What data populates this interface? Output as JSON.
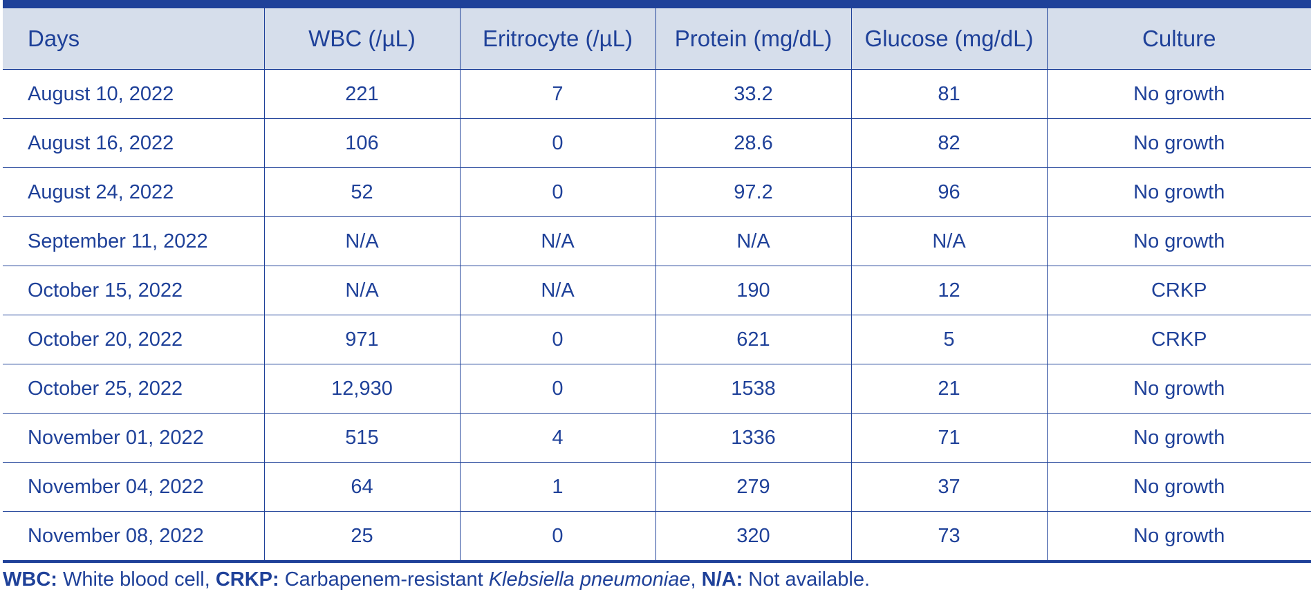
{
  "table": {
    "headers": [
      "Days",
      "WBC (/µL)",
      "Eritrocyte (/µL)",
      "Protein (mg/dL)",
      "Glucose (mg/dL)",
      "Culture"
    ],
    "rows": [
      [
        "August 10, 2022",
        "221",
        "7",
        "33.2",
        "81",
        "No growth"
      ],
      [
        "August 16, 2022",
        "106",
        "0",
        "28.6",
        "82",
        "No growth"
      ],
      [
        "August 24, 2022",
        "52",
        "0",
        "97.2",
        "96",
        "No growth"
      ],
      [
        "September 11, 2022",
        "N/A",
        "N/A",
        "N/A",
        "N/A",
        "No growth"
      ],
      [
        "October 15, 2022",
        "N/A",
        "N/A",
        "190",
        "12",
        "CRKP"
      ],
      [
        "October 20, 2022",
        "971",
        "0",
        "621",
        "5",
        "CRKP"
      ],
      [
        "October 25, 2022",
        "12,930",
        "0",
        "1538",
        "21",
        "No growth"
      ],
      [
        "November 01, 2022",
        "515",
        "4",
        "1336",
        "71",
        "No growth"
      ],
      [
        "November 04, 2022",
        "64",
        "1",
        "279",
        "37",
        "No growth"
      ],
      [
        "November 08, 2022",
        "25",
        "0",
        "320",
        "73",
        "No growth"
      ]
    ]
  },
  "footnote": {
    "wbc_abbr": "WBC:",
    "wbc_text": " White blood cell, ",
    "crkp_abbr": "CRKP:",
    "crkp_text": " Carbapenem-resistant ",
    "crkp_species": "Klebsiella pneumoniae",
    "sep": ", ",
    "na_abbr": "N/A:",
    "na_text": " Not available."
  },
  "colors": {
    "accent": "#1f4199",
    "header_bg": "#d6deeb"
  }
}
